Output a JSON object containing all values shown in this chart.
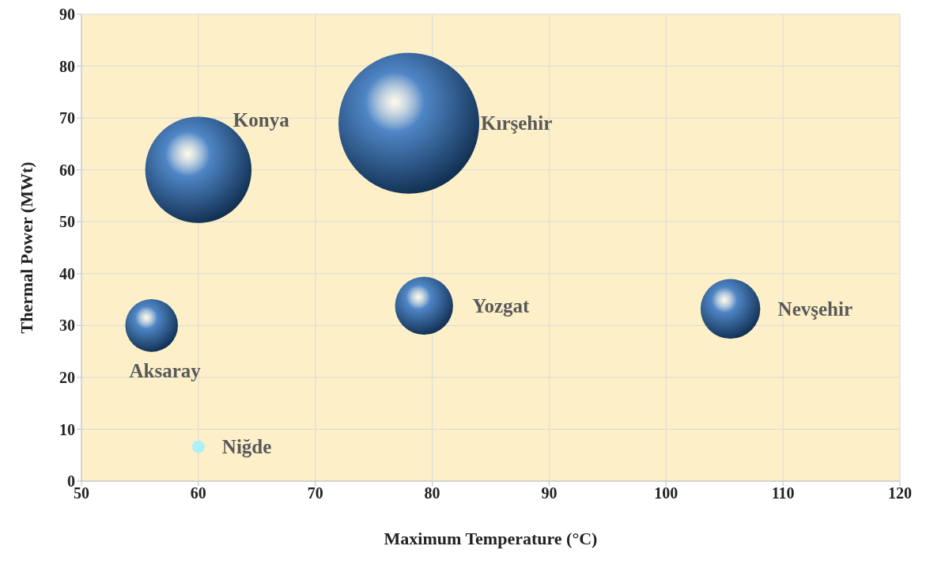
{
  "chart_data": {
    "type": "bubble",
    "xlabel": "Maximum Temperature (°C)",
    "ylabel": "Thermal Power (MWt)",
    "x": [
      60,
      78,
      56,
      79.3,
      105.5,
      60
    ],
    "values": [
      60,
      69,
      30,
      33.8,
      33.2,
      6.6
    ],
    "sizes": [
      0.57,
      1,
      0.14,
      0.17,
      0.18,
      0.008
    ],
    "colors": [
      "#4f86c6",
      "#4f86c6",
      "#4f86c6",
      "#4f86c6",
      "#4f86c6",
      "#aef0f8"
    ],
    "annotations": [
      "Konya",
      "Kırşehir",
      "Aksaray",
      "Yozgat",
      "Nevşehir",
      "Niğde"
    ],
    "xlim": [
      50,
      120
    ],
    "xticks": [
      50,
      60,
      70,
      80,
      90,
      100,
      110,
      120
    ],
    "ylim": [
      0,
      90
    ],
    "yticks": [
      0,
      10,
      20,
      30,
      40,
      50,
      60,
      70,
      80,
      90
    ],
    "grid": true
  }
}
